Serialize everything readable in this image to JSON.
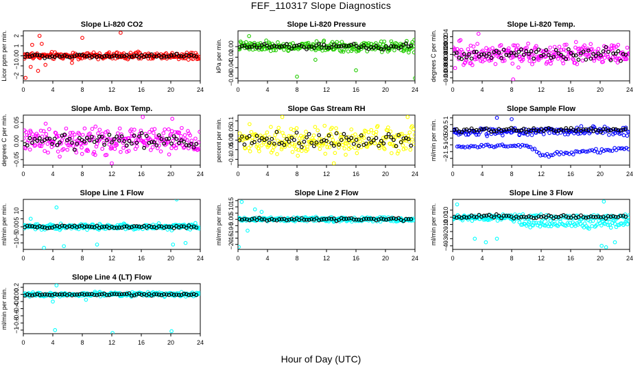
{
  "page": {
    "title": "FEF_110317  Slope Diagnostics",
    "xlabel": "Hour of Day (UTC)"
  },
  "colors": {
    "red": "#ff0000",
    "green": "#22cc00",
    "magenta": "#ff00ff",
    "yellow": "#ffff00",
    "blue": "#0000ff",
    "cyan": "#00ffff",
    "black": "#000000"
  },
  "chart_data": [
    {
      "type": "scatter",
      "title": "Slope Li-820 CO2",
      "xlabel": "",
      "ylabel": "Licor ppm per min.",
      "xlim": [
        0,
        24
      ],
      "ylim": [
        -2.5,
        2.5
      ],
      "xticks": [
        0,
        4,
        8,
        12,
        16,
        20,
        24
      ],
      "yticks": [
        -2,
        -1,
        0,
        1,
        2
      ],
      "color": "red",
      "base": 0,
      "noise": 0.3,
      "outliers": [
        [
          1.2,
          1.1
        ],
        [
          2.2,
          2.0
        ],
        [
          2.0,
          -1.5
        ],
        [
          0.3,
          -2.2
        ],
        [
          3.0,
          -0.9
        ],
        [
          8.0,
          1.8
        ],
        [
          13.2,
          2.3
        ],
        [
          1.0,
          -1.1
        ],
        [
          2.5,
          1.2
        ],
        [
          6.6,
          -0.7
        ]
      ],
      "black_base": 0
    },
    {
      "type": "scatter",
      "title": "Slope Li-820 Pressure",
      "xlabel": "",
      "ylabel": "kPa per min.",
      "xlim": [
        0,
        24
      ],
      "ylim": [
        -0.065,
        0.03
      ],
      "xticks": [
        0,
        4,
        8,
        12,
        16,
        20,
        24
      ],
      "yticks": [
        -0.06,
        -0.04,
        -0.02,
        0.0
      ],
      "color": "green",
      "base": 0,
      "noise": 0.008,
      "outliers": [
        [
          8.0,
          -0.057
        ],
        [
          16.0,
          -0.045
        ],
        [
          24.0,
          -0.06
        ],
        [
          1.5,
          0.02
        ],
        [
          10.5,
          -0.025
        ]
      ],
      "black_base": 0
    },
    {
      "type": "scatter",
      "title": "Slope Li-820 Temp.",
      "xlabel": "",
      "ylabel": "degrees C per min.",
      "xlim": [
        0,
        24
      ],
      "ylim": [
        -0.011,
        0.006
      ],
      "xticks": [
        0,
        4,
        8,
        12,
        16,
        20,
        24
      ],
      "yticks": [
        -0.01,
        -0.008,
        -0.006,
        -0.004,
        -0.002,
        0.0,
        0.002,
        0.004
      ],
      "color": "magenta",
      "base": -0.002,
      "noise": 0.0032,
      "outliers": [
        [
          8.2,
          -0.0105
        ],
        [
          3.5,
          0.005
        ]
      ],
      "black_base": -0.002
    },
    {
      "type": "scatter",
      "title": "Slope Amb. Box Temp.",
      "xlabel": "",
      "ylabel": "degrees C per min.",
      "xlim": [
        0,
        24
      ],
      "ylim": [
        -0.065,
        0.07
      ],
      "xticks": [
        0,
        4,
        8,
        12,
        16,
        20,
        24
      ],
      "yticks": [
        -0.05,
        0.0,
        0.05
      ],
      "color": "magenta",
      "base": 0,
      "noise": 0.03,
      "outliers": [
        [
          16.2,
          0.065
        ],
        [
          20.2,
          0.06
        ],
        [
          12.0,
          -0.06
        ]
      ],
      "black_base": 0
    },
    {
      "type": "scatter",
      "title": "Slope Gas Stream RH",
      "xlabel": "",
      "ylabel": "percent per min.",
      "xlim": [
        0,
        24
      ],
      "ylim": [
        -0.13,
        0.13
      ],
      "xticks": [
        0,
        4,
        8,
        12,
        16,
        20,
        24
      ],
      "yticks": [
        -0.1,
        -0.05,
        0.0,
        0.05,
        0.1
      ],
      "color": "yellow",
      "base": 0,
      "noise": 0.06,
      "outliers": [
        [
          6.0,
          0.12
        ],
        [
          13.0,
          -0.12
        ],
        [
          23.0,
          0.12
        ]
      ],
      "black_base": 0
    },
    {
      "type": "scatter",
      "title": "Slope Sample Flow",
      "xlabel": "",
      "ylabel": "ml/min per min.",
      "xlim": [
        0,
        24
      ],
      "ylim": [
        -2.5,
        1.2
      ],
      "xticks": [
        0,
        4,
        8,
        12,
        16,
        20,
        24
      ],
      "yticks": [
        -2.0,
        -1.5,
        -1.0,
        -0.5,
        0.0,
        0.5,
        1.0
      ],
      "color": "blue",
      "base": 0,
      "noise": 0.25,
      "outliers": [
        [
          6.0,
          1.0
        ],
        [
          8.0,
          0.9
        ]
      ],
      "black_base": 0.1,
      "second_band": true
    },
    {
      "type": "scatter",
      "title": "Slope Line 1 Flow",
      "xlabel": "",
      "ylabel": "ml/min per min.",
      "xlim": [
        0,
        24
      ],
      "ylim": [
        -14,
        17
      ],
      "xticks": [
        0,
        4,
        8,
        12,
        16,
        20,
        24
      ],
      "yticks": [
        -10,
        -5,
        0,
        5,
        10
      ],
      "color": "cyan",
      "base": 0,
      "noise": 1.5,
      "outliers": [
        [
          4.5,
          12
        ],
        [
          2.8,
          -13
        ],
        [
          5.5,
          -12
        ],
        [
          10.0,
          -11
        ],
        [
          20.3,
          -11
        ],
        [
          20.8,
          17
        ],
        [
          22.0,
          -10
        ],
        [
          1.0,
          5
        ]
      ],
      "black_base": 0
    },
    {
      "type": "scatter",
      "title": "Slope Line 2 Flow",
      "xlabel": "",
      "ylabel": "ml/min per min.",
      "xlim": [
        0,
        24
      ],
      "ylim": [
        -24,
        16
      ],
      "xticks": [
        0,
        4,
        8,
        12,
        16,
        20,
        24
      ],
      "yticks": [
        -20,
        -15,
        -10,
        -5,
        0,
        5,
        10,
        15
      ],
      "color": "cyan",
      "base": 0,
      "noise": 1.6,
      "outliers": [
        [
          0.5,
          14
        ],
        [
          1.3,
          -9
        ],
        [
          0.1,
          -22
        ],
        [
          2.3,
          8
        ],
        [
          3.2,
          6
        ]
      ],
      "black_base": 0
    },
    {
      "type": "scatter",
      "title": "Slope Line 3 Flow",
      "xlabel": "",
      "ylabel": "ml/min per min.",
      "xlim": [
        0,
        24
      ],
      "ylim": [
        -45,
        25
      ],
      "xticks": [
        0,
        4,
        8,
        12,
        16,
        20,
        24
      ],
      "yticks": [
        -40,
        -30,
        -20,
        -10,
        0,
        10
      ],
      "color": "cyan",
      "base": 0,
      "noise": 4,
      "outliers": [
        [
          0.6,
          18
        ],
        [
          3.0,
          -30
        ],
        [
          20.5,
          22
        ],
        [
          20.2,
          -40
        ],
        [
          20.8,
          -42
        ],
        [
          22.0,
          -35
        ],
        [
          4.5,
          -35
        ],
        [
          6.0,
          -30
        ]
      ],
      "black_base": 1,
      "lower_band": true
    },
    {
      "type": "scatter",
      "title": "Slope Line 4 (LT) Flow",
      "xlabel": "",
      "ylabel": "ml/min per min.",
      "xlim": [
        0,
        24
      ],
      "ylim": [
        -1.1,
        0.3
      ],
      "xticks": [
        0,
        4,
        8,
        12,
        16,
        20,
        24
      ],
      "yticks": [
        -1.0,
        -0.8,
        -0.6,
        -0.4,
        -0.2,
        0.0,
        0.2
      ],
      "color": "cyan",
      "base": 0,
      "noise": 0.05,
      "outliers": [
        [
          4.3,
          -1.0
        ],
        [
          12.1,
          -1.08
        ],
        [
          20.1,
          -1.03
        ],
        [
          4.5,
          0.25
        ],
        [
          4.0,
          -0.2
        ],
        [
          8.5,
          -0.15
        ]
      ],
      "black_base": 0
    }
  ]
}
